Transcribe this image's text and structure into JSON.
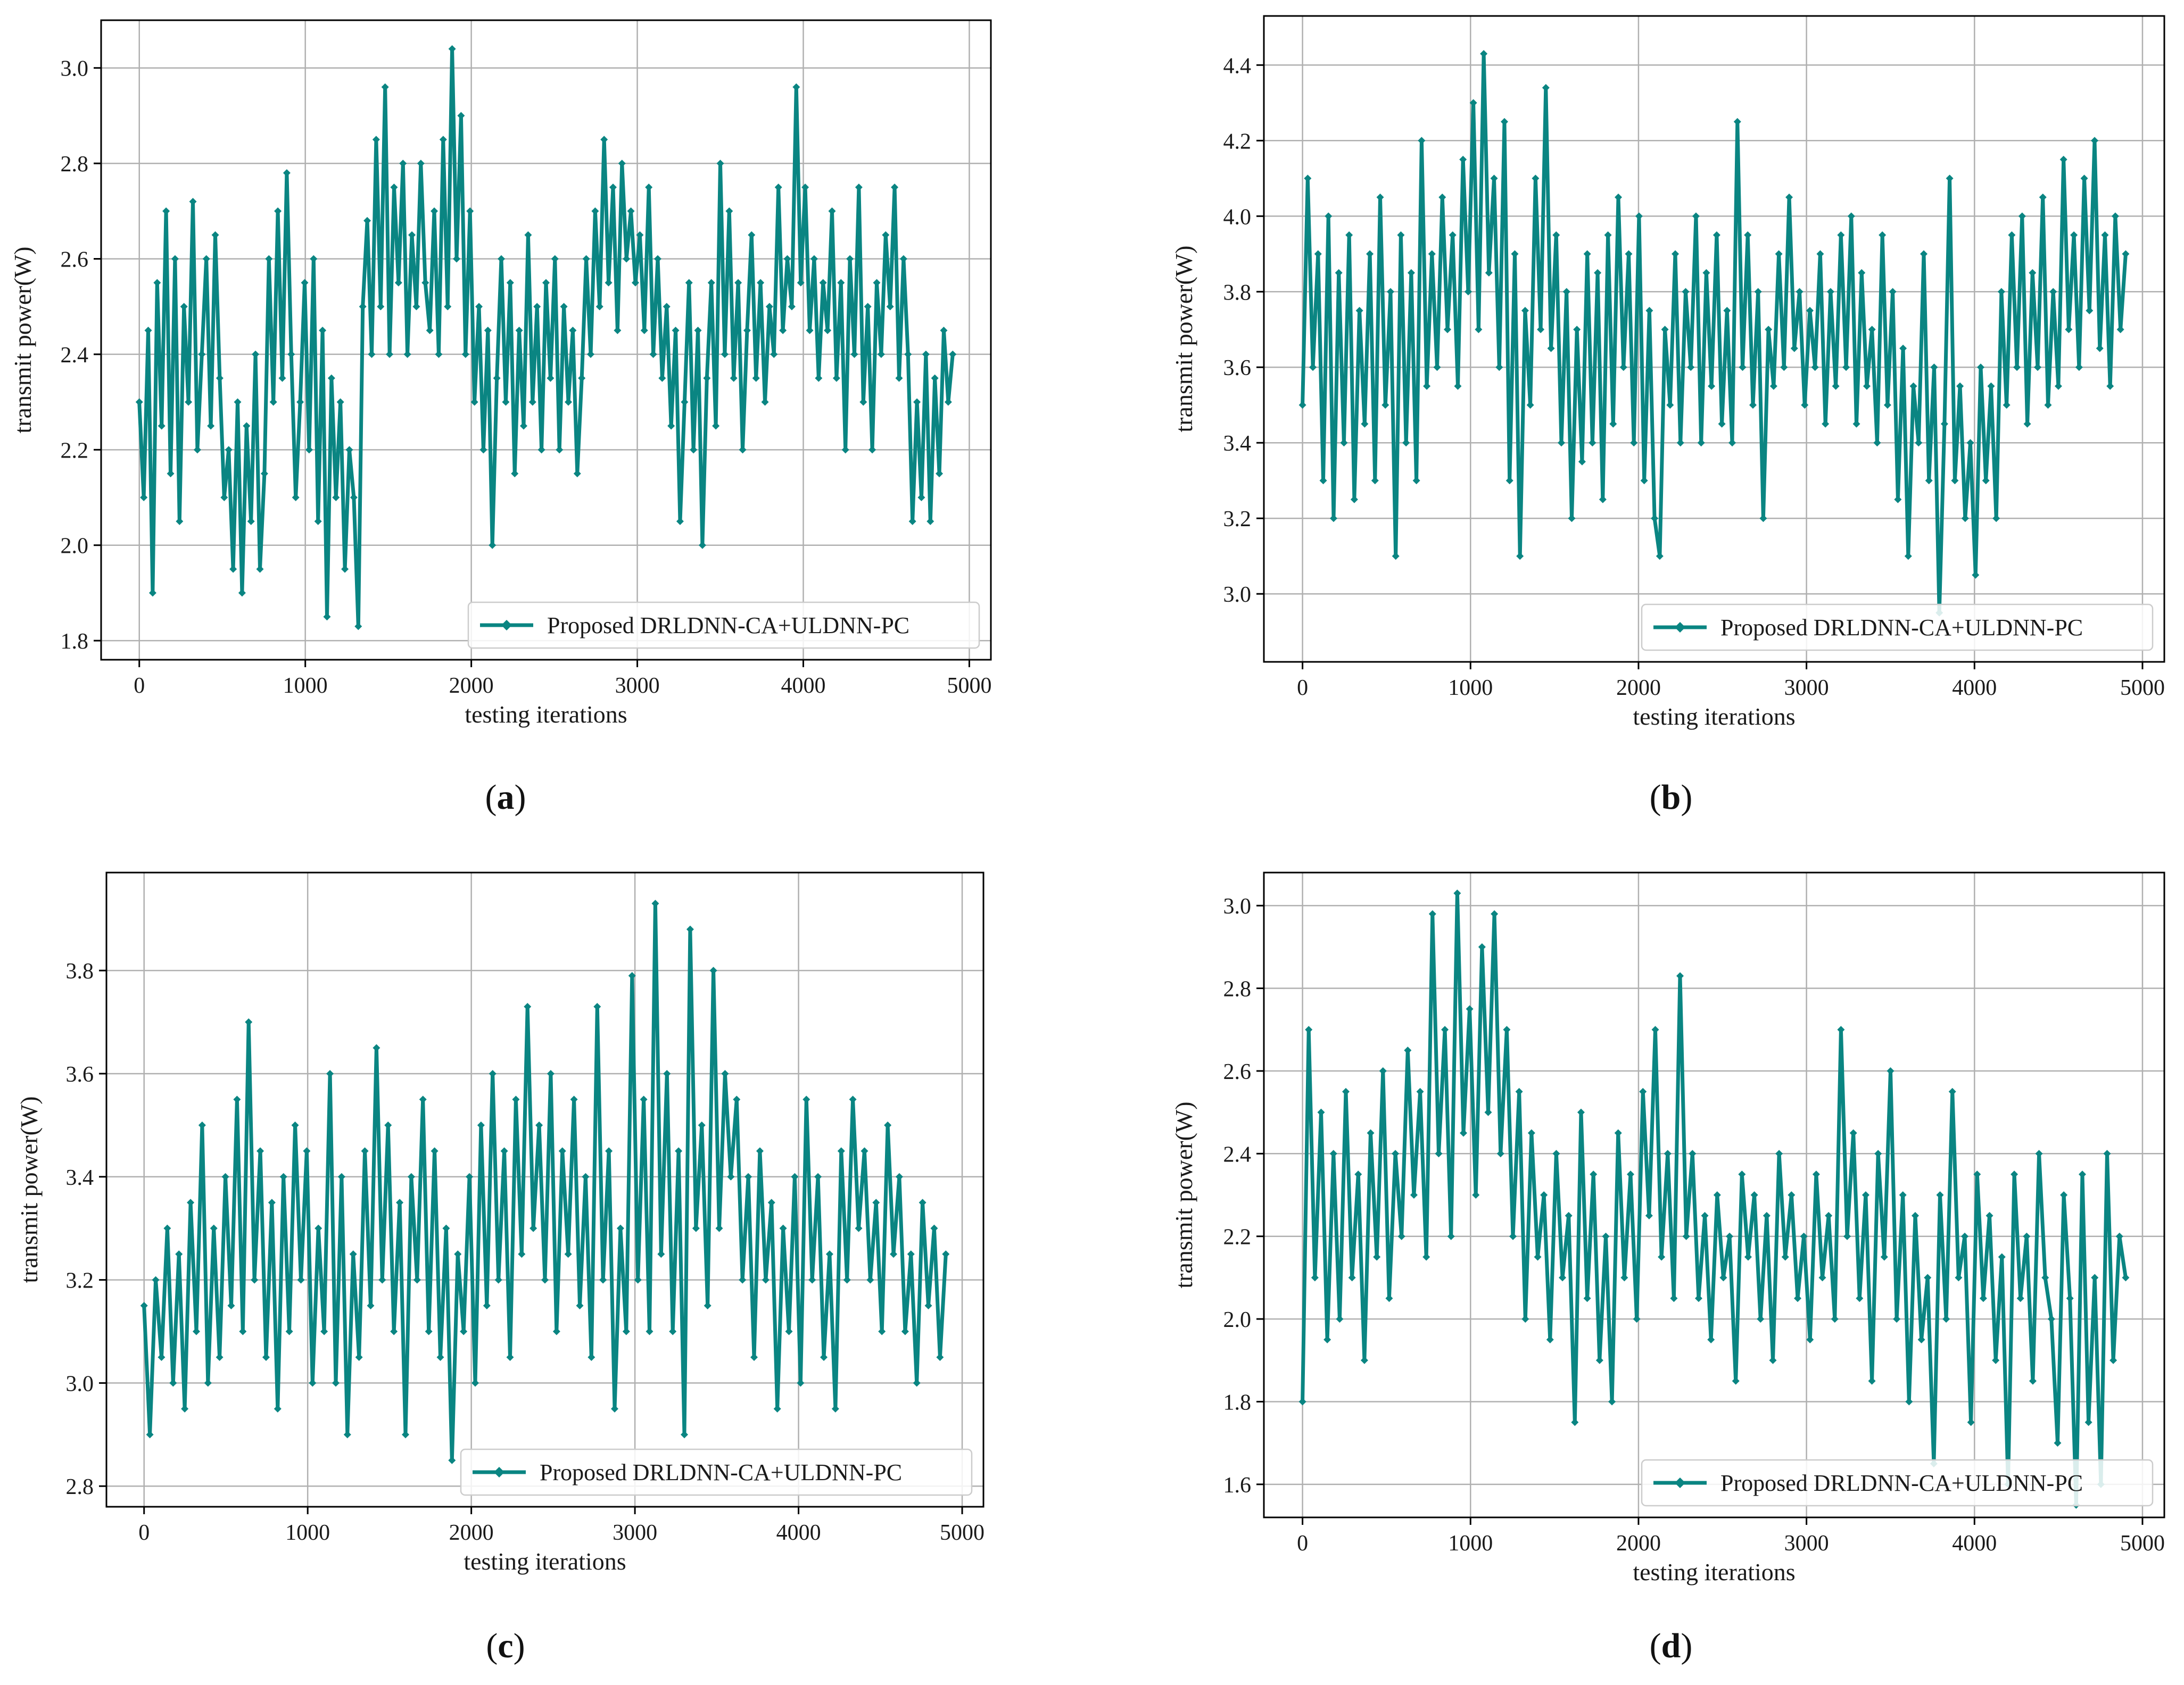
{
  "figure": {
    "colors": {
      "series": "#0a8582",
      "grid": "#b0b0b0",
      "axes": "#000000",
      "text": "#1a1a1a"
    }
  },
  "chart_data": [
    {
      "panel": "a",
      "caption": {
        "open": "(",
        "letter": "a",
        "close": ")"
      },
      "type": "line",
      "xlabel": "testing iterations",
      "ylabel": "transmit power(W)",
      "xlim": [
        -230,
        5130
      ],
      "ylim": [
        1.76,
        3.1
      ],
      "xticks": [
        0,
        1000,
        2000,
        3000,
        4000,
        5000
      ],
      "yticks": [
        1.8,
        2.0,
        2.2,
        2.4,
        2.6,
        2.8,
        3.0
      ],
      "ytick_labels": [
        "1.8",
        "2.0",
        "2.2",
        "2.4",
        "2.6",
        "2.8",
        "3.0"
      ],
      "grid": true,
      "legend": {
        "position": "lower-right",
        "entries": [
          "Proposed DRLDNN-CA+ULDNN-PC"
        ]
      },
      "series": [
        {
          "name": "Proposed DRLDNN-CA+ULDNN-PC",
          "x_start": 0,
          "x_end": 4900,
          "values": [
            2.3,
            2.1,
            2.45,
            1.9,
            2.55,
            2.25,
            2.7,
            2.15,
            2.6,
            2.05,
            2.5,
            2.3,
            2.72,
            2.2,
            2.4,
            2.6,
            2.25,
            2.65,
            2.35,
            2.1,
            2.2,
            1.95,
            2.3,
            1.9,
            2.25,
            2.05,
            2.4,
            1.95,
            2.15,
            2.6,
            2.3,
            2.7,
            2.35,
            2.78,
            2.4,
            2.1,
            2.3,
            2.55,
            2.2,
            2.6,
            2.05,
            2.45,
            1.85,
            2.35,
            2.1,
            2.3,
            1.95,
            2.2,
            2.1,
            1.83,
            2.5,
            2.68,
            2.4,
            2.85,
            2.5,
            2.96,
            2.4,
            2.75,
            2.55,
            2.8,
            2.4,
            2.65,
            2.5,
            2.8,
            2.55,
            2.45,
            2.7,
            2.4,
            2.85,
            2.5,
            3.04,
            2.6,
            2.9,
            2.4,
            2.7,
            2.3,
            2.5,
            2.2,
            2.45,
            2.0,
            2.35,
            2.6,
            2.3,
            2.55,
            2.15,
            2.45,
            2.25,
            2.65,
            2.3,
            2.5,
            2.2,
            2.55,
            2.35,
            2.6,
            2.2,
            2.5,
            2.3,
            2.45,
            2.15,
            2.35,
            2.6,
            2.4,
            2.7,
            2.5,
            2.85,
            2.55,
            2.75,
            2.45,
            2.8,
            2.6,
            2.7,
            2.55,
            2.65,
            2.45,
            2.75,
            2.4,
            2.6,
            2.35,
            2.5,
            2.25,
            2.45,
            2.05,
            2.3,
            2.55,
            2.2,
            2.45,
            2.0,
            2.35,
            2.55,
            2.25,
            2.8,
            2.4,
            2.7,
            2.35,
            2.55,
            2.2,
            2.45,
            2.65,
            2.35,
            2.55,
            2.3,
            2.5,
            2.4,
            2.75,
            2.45,
            2.6,
            2.5,
            2.96,
            2.55,
            2.75,
            2.45,
            2.6,
            2.35,
            2.55,
            2.45,
            2.7,
            2.35,
            2.55,
            2.2,
            2.6,
            2.4,
            2.75,
            2.3,
            2.5,
            2.2,
            2.55,
            2.4,
            2.65,
            2.5,
            2.75,
            2.35,
            2.6,
            2.4,
            2.05,
            2.3,
            2.1,
            2.4,
            2.05,
            2.35,
            2.15,
            2.45,
            2.3,
            2.4
          ]
        }
      ]
    },
    {
      "panel": "b",
      "caption": {
        "open": "(",
        "letter": "b",
        "close": ")"
      },
      "type": "line",
      "xlabel": "testing iterations",
      "ylabel": "transmit power(W)",
      "xlim": [
        -230,
        5130
      ],
      "ylim": [
        2.82,
        4.53
      ],
      "xticks": [
        0,
        1000,
        2000,
        3000,
        4000,
        5000
      ],
      "yticks": [
        3.0,
        3.2,
        3.4,
        3.6,
        3.8,
        4.0,
        4.2,
        4.4
      ],
      "ytick_labels": [
        "3.0",
        "3.2",
        "3.4",
        "3.6",
        "3.8",
        "4.0",
        "4.2",
        "4.4"
      ],
      "grid": true,
      "legend": {
        "position": "lower-right",
        "entries": [
          "Proposed DRLDNN-CA+ULDNN-PC"
        ]
      },
      "series": [
        {
          "name": "Proposed DRLDNN-CA+ULDNN-PC",
          "x_start": 0,
          "x_end": 4900,
          "values": [
            3.5,
            4.1,
            3.6,
            3.9,
            3.3,
            4.0,
            3.2,
            3.85,
            3.4,
            3.95,
            3.25,
            3.75,
            3.45,
            3.9,
            3.3,
            4.05,
            3.5,
            3.8,
            3.1,
            3.95,
            3.4,
            3.85,
            3.3,
            4.2,
            3.55,
            3.9,
            3.6,
            4.05,
            3.7,
            3.95,
            3.55,
            4.15,
            3.8,
            4.3,
            3.7,
            4.43,
            3.85,
            4.1,
            3.6,
            4.25,
            3.3,
            3.9,
            3.1,
            3.75,
            3.5,
            4.1,
            3.7,
            4.34,
            3.65,
            3.95,
            3.4,
            3.8,
            3.2,
            3.7,
            3.35,
            3.9,
            3.4,
            3.85,
            3.25,
            3.95,
            3.45,
            4.05,
            3.6,
            3.9,
            3.4,
            4.0,
            3.3,
            3.75,
            3.2,
            3.1,
            3.7,
            3.5,
            3.9,
            3.4,
            3.8,
            3.6,
            4.0,
            3.4,
            3.85,
            3.55,
            3.95,
            3.45,
            3.75,
            3.4,
            4.25,
            3.6,
            3.95,
            3.5,
            3.8,
            3.2,
            3.7,
            3.55,
            3.9,
            3.6,
            4.05,
            3.65,
            3.8,
            3.5,
            3.75,
            3.6,
            3.9,
            3.45,
            3.8,
            3.55,
            3.95,
            3.6,
            4.0,
            3.45,
            3.85,
            3.55,
            3.7,
            3.4,
            3.95,
            3.5,
            3.8,
            3.25,
            3.65,
            3.1,
            3.55,
            3.4,
            3.9,
            3.3,
            3.6,
            2.95,
            3.45,
            4.1,
            3.3,
            3.55,
            3.2,
            3.4,
            3.05,
            3.6,
            3.3,
            3.55,
            3.2,
            3.8,
            3.5,
            3.95,
            3.6,
            4.0,
            3.45,
            3.85,
            3.6,
            4.05,
            3.5,
            3.8,
            3.55,
            4.15,
            3.7,
            3.95,
            3.6,
            4.1,
            3.75,
            4.2,
            3.65,
            3.95,
            3.55,
            4.0,
            3.7,
            3.9
          ]
        }
      ]
    },
    {
      "panel": "c",
      "caption": {
        "open": "(",
        "letter": "c",
        "close": ")"
      },
      "type": "line",
      "xlabel": "testing iterations",
      "ylabel": "transmit power(W)",
      "xlim": [
        -230,
        5130
      ],
      "ylim": [
        2.76,
        3.99
      ],
      "xticks": [
        0,
        1000,
        2000,
        3000,
        4000,
        5000
      ],
      "yticks": [
        2.8,
        3.0,
        3.2,
        3.4,
        3.6,
        3.8
      ],
      "ytick_labels": [
        "2.8",
        "3.0",
        "3.2",
        "3.4",
        "3.6",
        "3.8"
      ],
      "grid": true,
      "legend": {
        "position": "lower-right",
        "entries": [
          "Proposed DRLDNN-CA+ULDNN-PC"
        ]
      },
      "series": [
        {
          "name": "Proposed DRLDNN-CA+ULDNN-PC",
          "x_start": 0,
          "x_end": 4900,
          "values": [
            3.15,
            2.9,
            3.2,
            3.05,
            3.3,
            3.0,
            3.25,
            2.95,
            3.35,
            3.1,
            3.5,
            3.0,
            3.3,
            3.05,
            3.4,
            3.15,
            3.55,
            3.1,
            3.7,
            3.2,
            3.45,
            3.05,
            3.35,
            2.95,
            3.4,
            3.1,
            3.5,
            3.2,
            3.45,
            3.0,
            3.3,
            3.1,
            3.6,
            3.0,
            3.4,
            2.9,
            3.25,
            3.05,
            3.45,
            3.15,
            3.65,
            3.2,
            3.5,
            3.1,
            3.35,
            2.9,
            3.4,
            3.2,
            3.55,
            3.1,
            3.45,
            3.05,
            3.3,
            2.85,
            3.25,
            3.1,
            3.4,
            3.0,
            3.5,
            3.15,
            3.6,
            3.2,
            3.45,
            3.05,
            3.55,
            3.25,
            3.73,
            3.3,
            3.5,
            3.2,
            3.6,
            3.1,
            3.45,
            3.25,
            3.55,
            3.15,
            3.4,
            3.05,
            3.73,
            3.2,
            3.45,
            2.95,
            3.3,
            3.1,
            3.79,
            3.2,
            3.55,
            3.1,
            3.93,
            3.25,
            3.6,
            3.1,
            3.45,
            2.9,
            3.88,
            3.3,
            3.5,
            3.15,
            3.8,
            3.3,
            3.6,
            3.4,
            3.55,
            3.2,
            3.4,
            3.05,
            3.45,
            3.2,
            3.35,
            2.95,
            3.3,
            3.1,
            3.4,
            3.0,
            3.55,
            3.2,
            3.4,
            3.05,
            3.25,
            2.95,
            3.45,
            3.2,
            3.55,
            3.3,
            3.45,
            3.2,
            3.35,
            3.1,
            3.5,
            3.25,
            3.4,
            3.1,
            3.25,
            3.0,
            3.35,
            3.15,
            3.3,
            3.05,
            3.25
          ]
        }
      ]
    },
    {
      "panel": "d",
      "caption": {
        "open": "(",
        "letter": "d",
        "close": ")"
      },
      "type": "line",
      "xlabel": "testing iterations",
      "ylabel": "transmit power(W)",
      "xlim": [
        -230,
        5130
      ],
      "ylim": [
        1.52,
        3.08
      ],
      "xticks": [
        0,
        1000,
        2000,
        3000,
        4000,
        5000
      ],
      "yticks": [
        1.6,
        1.8,
        2.0,
        2.2,
        2.4,
        2.6,
        2.8,
        3.0
      ],
      "ytick_labels": [
        "1.6",
        "1.8",
        "2.0",
        "2.2",
        "2.4",
        "2.6",
        "2.8",
        "3.0"
      ],
      "grid": true,
      "legend": {
        "position": "lower-right",
        "entries": [
          "Proposed DRLDNN-CA+ULDNN-PC"
        ]
      },
      "series": [
        {
          "name": "Proposed DRLDNN-CA+ULDNN-PC",
          "x_start": 0,
          "x_end": 4900,
          "values": [
            1.8,
            2.7,
            2.1,
            2.5,
            1.95,
            2.4,
            2.0,
            2.55,
            2.1,
            2.35,
            1.9,
            2.45,
            2.15,
            2.6,
            2.05,
            2.4,
            2.2,
            2.65,
            2.3,
            2.55,
            2.15,
            2.98,
            2.4,
            2.7,
            2.2,
            3.03,
            2.45,
            2.75,
            2.3,
            2.9,
            2.5,
            2.98,
            2.4,
            2.7,
            2.2,
            2.55,
            2.0,
            2.45,
            2.15,
            2.3,
            1.95,
            2.4,
            2.1,
            2.25,
            1.75,
            2.5,
            2.05,
            2.35,
            1.9,
            2.2,
            1.8,
            2.45,
            2.1,
            2.35,
            2.0,
            2.55,
            2.25,
            2.7,
            2.15,
            2.4,
            2.05,
            2.83,
            2.2,
            2.4,
            2.05,
            2.25,
            1.95,
            2.3,
            2.1,
            2.2,
            1.85,
            2.35,
            2.15,
            2.3,
            2.0,
            2.25,
            1.9,
            2.4,
            2.15,
            2.3,
            2.05,
            2.2,
            1.95,
            2.35,
            2.1,
            2.25,
            2.0,
            2.7,
            2.2,
            2.45,
            2.05,
            2.3,
            1.85,
            2.4,
            2.15,
            2.6,
            2.0,
            2.3,
            1.8,
            2.25,
            1.95,
            2.1,
            1.65,
            2.3,
            2.0,
            2.55,
            2.1,
            2.2,
            1.75,
            2.35,
            2.05,
            2.25,
            1.9,
            2.15,
            1.6,
            2.35,
            2.05,
            2.2,
            1.85,
            2.4,
            2.1,
            2.0,
            1.7,
            2.3,
            2.05,
            1.55,
            2.35,
            1.75,
            2.1,
            1.6,
            2.4,
            1.9,
            2.2,
            2.1
          ]
        }
      ]
    }
  ]
}
